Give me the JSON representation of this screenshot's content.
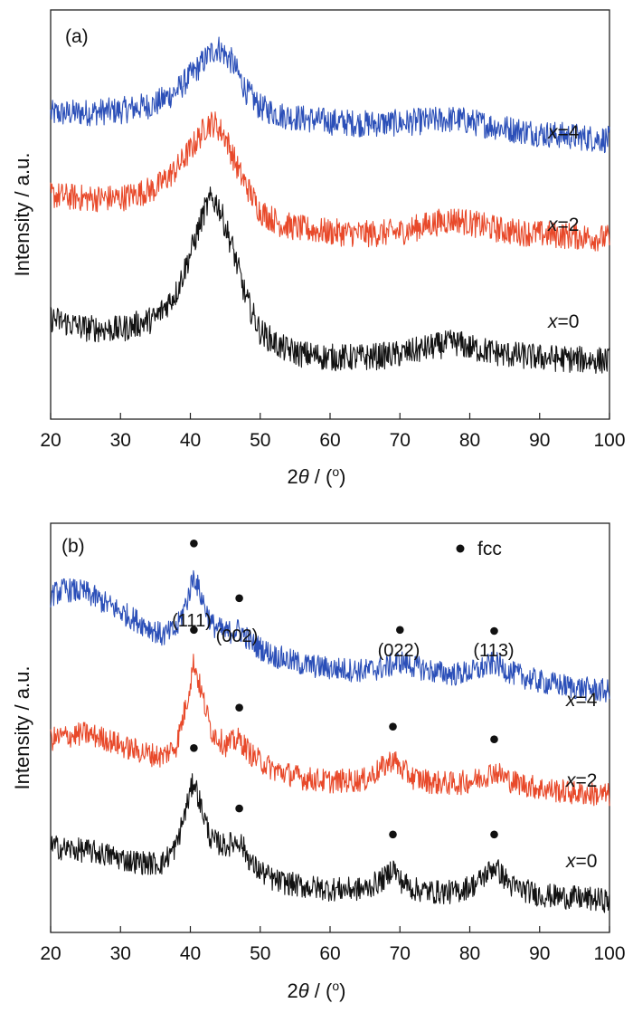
{
  "colors": {
    "blue": "#2b4fb8",
    "red": "#e8492a",
    "black": "#111111"
  },
  "chart_data": [
    {
      "type": "line",
      "panel_label": "(a)",
      "xlabel": "2θ / (°)",
      "ylabel": "Intensity / a.u.",
      "xlim": [
        20,
        100
      ],
      "xticks": [
        "20",
        "30",
        "40",
        "50",
        "60",
        "70",
        "80",
        "90",
        "100"
      ],
      "yticks_shown": false,
      "series": [
        {
          "name": "x=4",
          "color": "#2b4fb8",
          "x": [
            20,
            25,
            30,
            35,
            38,
            41,
            43,
            44,
            46,
            48,
            50,
            53,
            56,
            60,
            65,
            70,
            75,
            78,
            80,
            85,
            90,
            95,
            100
          ],
          "y": [
            6.7,
            6.72,
            6.75,
            6.85,
            7.05,
            7.4,
            7.65,
            7.72,
            7.5,
            7.05,
            6.8,
            6.68,
            6.63,
            6.58,
            6.55,
            6.56,
            6.6,
            6.62,
            6.58,
            6.48,
            6.4,
            6.35,
            6.3
          ]
        },
        {
          "name": "x=2",
          "color": "#e8492a",
          "x": [
            20,
            25,
            30,
            35,
            38,
            41,
            42.5,
            43.5,
            45,
            47,
            50,
            53,
            56,
            60,
            65,
            70,
            75,
            78,
            80,
            85,
            90,
            95,
            100
          ],
          "y": [
            5.45,
            5.4,
            5.4,
            5.55,
            5.85,
            6.3,
            6.55,
            6.55,
            6.35,
            5.8,
            5.2,
            5.0,
            4.93,
            4.88,
            4.85,
            4.88,
            5.02,
            5.08,
            5.02,
            4.9,
            4.85,
            4.82,
            4.78
          ]
        },
        {
          "name": "x=0",
          "color": "#111111",
          "x": [
            20,
            25,
            30,
            35,
            38,
            40,
            42,
            43,
            44,
            46,
            48,
            50,
            53,
            56,
            60,
            65,
            70,
            75,
            78,
            80,
            85,
            90,
            95,
            100
          ],
          "y": [
            3.55,
            3.4,
            3.38,
            3.55,
            3.95,
            4.55,
            5.2,
            5.4,
            5.3,
            4.65,
            3.85,
            3.35,
            3.1,
            3.0,
            2.95,
            2.95,
            3.0,
            3.12,
            3.18,
            3.1,
            3.0,
            2.95,
            2.92,
            2.9
          ]
        }
      ],
      "annotations": [
        "x=4",
        "x=2",
        "x=0"
      ]
    },
    {
      "type": "line",
      "panel_label": "(b)",
      "xlabel": "2θ / (°)",
      "ylabel": "Intensity / a.u.",
      "xlim": [
        20,
        100
      ],
      "xticks": [
        "20",
        "30",
        "40",
        "50",
        "60",
        "70",
        "80",
        "90",
        "100"
      ],
      "yticks_shown": false,
      "legend": {
        "marker": "●",
        "label": "fcc",
        "position": "top-right"
      },
      "peak_labels": [
        {
          "text": "(111)",
          "x": 40.5
        },
        {
          "text": "(002)",
          "x": 47.0
        },
        {
          "text": "(022)",
          "x": 69.5
        },
        {
          "text": "(113)",
          "x": 83.5
        }
      ],
      "series": [
        {
          "name": "x=4",
          "color": "#2b4fb8",
          "x": [
            20,
            22,
            25,
            28,
            31,
            34,
            36,
            38,
            39.5,
            40.5,
            41.5,
            43,
            45,
            47,
            49,
            52,
            56,
            60,
            65,
            68,
            70,
            72,
            75,
            78,
            81,
            83.5,
            86,
            90,
            95,
            100
          ],
          "y": [
            7.05,
            7.15,
            7.1,
            6.9,
            6.7,
            6.5,
            6.35,
            6.45,
            6.95,
            7.4,
            7.05,
            6.55,
            6.4,
            6.45,
            6.2,
            6.0,
            5.85,
            5.78,
            5.74,
            5.8,
            5.9,
            5.82,
            5.72,
            5.68,
            5.74,
            5.88,
            5.7,
            5.55,
            5.45,
            5.38
          ]
        },
        {
          "name": "x=2",
          "color": "#e8492a",
          "x": [
            20,
            22,
            25,
            28,
            31,
            34,
            36,
            38,
            39.5,
            40.5,
            41.5,
            43,
            45,
            47,
            49,
            52,
            56,
            60,
            65,
            68,
            69,
            70,
            72,
            75,
            78,
            81,
            83.5,
            86,
            90,
            95,
            100
          ],
          "y": [
            4.55,
            4.6,
            4.65,
            4.55,
            4.4,
            4.3,
            4.25,
            4.45,
            5.2,
            5.9,
            5.4,
            4.7,
            4.45,
            4.55,
            4.25,
            4.02,
            3.88,
            3.82,
            3.85,
            4.1,
            4.22,
            4.05,
            3.88,
            3.8,
            3.78,
            3.85,
            4.0,
            3.82,
            3.7,
            3.62,
            3.58
          ]
        },
        {
          "name": "x=0",
          "color": "#111111",
          "x": [
            20,
            22,
            25,
            28,
            31,
            34,
            36,
            38,
            39.5,
            40.5,
            41.5,
            43,
            45,
            47,
            49,
            52,
            56,
            60,
            65,
            68,
            69,
            70,
            72,
            75,
            78,
            81,
            83.5,
            86,
            90,
            95,
            100
          ],
          "y": [
            2.7,
            2.65,
            2.62,
            2.55,
            2.45,
            2.4,
            2.4,
            2.7,
            3.4,
            3.85,
            3.4,
            2.8,
            2.7,
            2.8,
            2.35,
            2.1,
            2.0,
            1.95,
            1.95,
            2.15,
            2.35,
            2.1,
            1.95,
            1.9,
            1.9,
            2.05,
            2.35,
            2.0,
            1.85,
            1.8,
            1.75
          ]
        }
      ],
      "fcc_markers": [
        {
          "series": "x=4",
          "x": [
            40.5,
            47.0,
            70.0,
            83.5
          ]
        },
        {
          "series": "x=2",
          "x": [
            40.5,
            47.0,
            69.0,
            83.5
          ]
        },
        {
          "series": "x=0",
          "x": [
            40.5,
            47.0,
            69.0,
            83.5
          ]
        }
      ],
      "annotations": [
        "x=4",
        "x=2",
        "x=0"
      ]
    }
  ]
}
